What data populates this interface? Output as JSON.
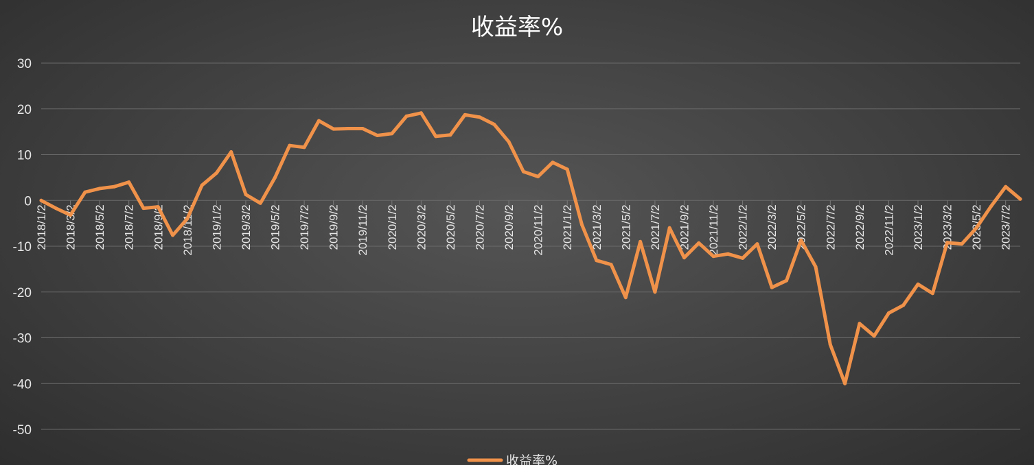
{
  "chart_data": {
    "type": "line",
    "title": "收益率%",
    "xlabel": "",
    "ylabel": "",
    "ylim": [
      -50,
      30
    ],
    "yticks": [
      30,
      20,
      10,
      0,
      -10,
      -20,
      -30,
      -40,
      -50
    ],
    "grid": true,
    "legend_position": "bottom",
    "x": [
      "2018/1/2",
      "2018/2/2",
      "2018/3/2",
      "2018/4/2",
      "2018/5/2",
      "2018/6/2",
      "2018/7/2",
      "2018/8/2",
      "2018/9/2",
      "2018/10/2",
      "2018/11/2",
      "2018/12/2",
      "2019/1/2",
      "2019/2/2",
      "2019/3/2",
      "2019/4/2",
      "2019/5/2",
      "2019/6/2",
      "2019/7/2",
      "2019/8/2",
      "2019/9/2",
      "2019/10/2",
      "2019/11/2",
      "2019/12/2",
      "2020/1/2",
      "2020/2/2",
      "2020/3/2",
      "2020/4/2",
      "2020/5/2",
      "2020/6/2",
      "2020/7/2",
      "2020/8/2",
      "2020/9/2",
      "2020/10/2",
      "2020/11/2",
      "2020/12/2",
      "2021/1/2",
      "2021/2/2",
      "2021/3/2",
      "2021/4/2",
      "2021/5/2",
      "2021/6/2",
      "2021/7/2",
      "2021/8/2",
      "2021/9/2",
      "2021/10/2",
      "2021/11/2",
      "2021/12/2",
      "2022/1/2",
      "2022/2/2",
      "2022/3/2",
      "2022/4/2",
      "2022/5/2",
      "2022/6/2",
      "2022/7/2",
      "2022/8/2",
      "2022/9/2",
      "2022/10/2",
      "2022/11/2",
      "2022/12/2",
      "2023/1/2",
      "2023/2/2",
      "2023/3/2",
      "2023/4/2",
      "2023/5/2",
      "2023/6/2",
      "2023/7/2",
      "2023/8/2"
    ],
    "x_tick_labels": [
      "2018/1/2",
      "2018/3/2",
      "2018/5/2",
      "2018/7/2",
      "2018/9/2",
      "2018/11/2",
      "2019/1/2",
      "2019/3/2",
      "2019/5/2",
      "2019/7/2",
      "2019/9/2",
      "2019/11/2",
      "2020/1/2",
      "2020/3/2",
      "2020/5/2",
      "2020/7/2",
      "2020/9/2",
      "2020/11/2",
      "2021/1/2",
      "2021/3/2",
      "2021/5/2",
      "2021/7/2",
      "2021/9/2",
      "2021/11/2",
      "2022/1/2",
      "2022/3/2",
      "2022/5/2",
      "2022/7/2",
      "2022/9/2",
      "2022/11/2",
      "2023/1/2",
      "2023/3/2",
      "2023/5/2",
      "2023/7/2"
    ],
    "series": [
      {
        "name": "收益率%",
        "color": "#f0924a",
        "values": [
          0,
          -1.7,
          -3.2,
          1.8,
          2.6,
          3.0,
          4.0,
          -1.7,
          -1.4,
          -7.6,
          -4.0,
          3.3,
          6.0,
          10.6,
          1.3,
          -0.6,
          5.0,
          12.0,
          11.6,
          17.4,
          15.6,
          15.7,
          15.7,
          14.2,
          14.6,
          18.4,
          19.1,
          14.0,
          14.3,
          18.7,
          18.2,
          16.6,
          12.8,
          6.3,
          5.2,
          8.3,
          6.8,
          -5.3,
          -13.1,
          -14.0,
          -21.2,
          -9.0,
          -20.0,
          -6.0,
          -12.5,
          -9.3,
          -12.2,
          -11.7,
          -12.6,
          -9.5,
          -19.0,
          -17.5,
          -8.7,
          -14.5,
          -31.5,
          -40.0,
          -26.9,
          -29.6,
          -24.6,
          -22.9,
          -18.3,
          -20.3,
          -9.2,
          -9.5,
          -6.0,
          -1.3,
          3.0,
          0.3
        ]
      }
    ]
  }
}
